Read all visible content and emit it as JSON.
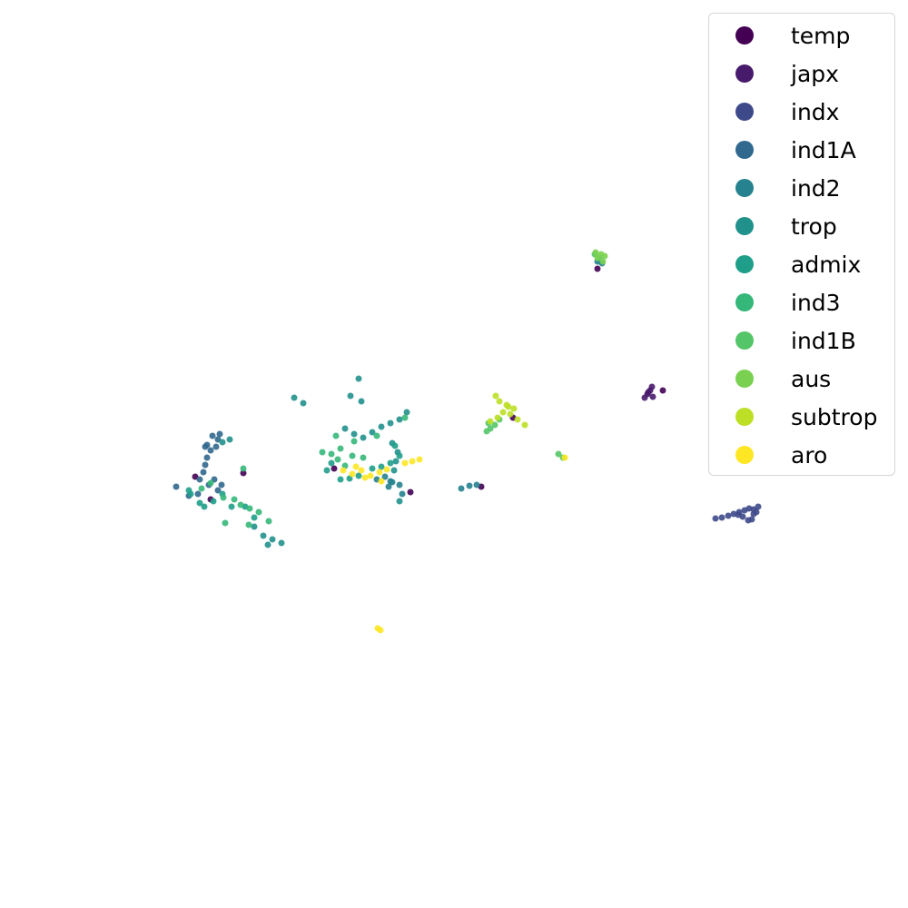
{
  "chart_data": {
    "type": "scatter",
    "title": "",
    "xlabel": "",
    "ylabel": "",
    "axes": "off",
    "grid": false,
    "legend_position": "top-right",
    "xlim": [
      0,
      100
    ],
    "ylim": [
      0,
      100
    ],
    "series": [
      {
        "name": "temp",
        "color": "#440154",
        "points": [
          [
            21.5,
            47.5
          ],
          [
            26.8,
            47.9
          ],
          [
            36.8,
            48.4
          ],
          [
            45.2,
            45.8
          ],
          [
            56.5,
            54.0
          ],
          [
            73.0,
            57.0
          ],
          [
            53.0,
            46.4
          ],
          [
            65.8,
            70.4
          ],
          [
            23.2,
            45.0
          ]
        ]
      },
      {
        "name": "japx",
        "color": "#481a6c",
        "points": [
          [
            71.0,
            56.2
          ],
          [
            71.3,
            56.6
          ],
          [
            71.6,
            57.0
          ],
          [
            71.8,
            57.4
          ],
          [
            71.4,
            56.8
          ],
          [
            71.9,
            56.3
          ]
        ]
      },
      {
        "name": "indx",
        "color": "#3e4989",
        "points": [
          [
            78.8,
            42.9
          ],
          [
            79.5,
            43.0
          ],
          [
            80.2,
            43.2
          ],
          [
            80.8,
            43.4
          ],
          [
            81.4,
            43.6
          ],
          [
            82.0,
            43.8
          ],
          [
            82.5,
            44.0
          ],
          [
            83.0,
            43.9
          ],
          [
            83.5,
            44.2
          ],
          [
            83.0,
            43.4
          ],
          [
            82.4,
            42.7
          ],
          [
            81.8,
            43.1
          ],
          [
            81.3,
            43.3
          ],
          [
            82.8,
            42.8
          ],
          [
            83.3,
            43.6
          ]
        ]
      },
      {
        "name": "ind1A",
        "color": "#31688e",
        "points": [
          [
            23.4,
            52.0
          ],
          [
            24.0,
            51.6
          ],
          [
            23.8,
            50.8
          ],
          [
            23.2,
            50.4
          ],
          [
            22.8,
            49.6
          ],
          [
            22.6,
            48.8
          ],
          [
            22.4,
            48.0
          ],
          [
            22.0,
            47.2
          ],
          [
            23.0,
            46.6
          ],
          [
            24.0,
            46.0
          ],
          [
            24.4,
            46.6
          ],
          [
            23.6,
            47.2
          ],
          [
            19.4,
            46.4
          ],
          [
            20.8,
            45.4
          ],
          [
            21.8,
            45.6
          ],
          [
            22.6,
            50.8
          ],
          [
            24.2,
            52.2
          ],
          [
            22.8,
            51.0
          ]
        ]
      },
      {
        "name": "ind2",
        "color": "#26828e",
        "points": [
          [
            42.4,
            47.5
          ],
          [
            43.2,
            46.9
          ],
          [
            44.0,
            46.6
          ],
          [
            44.3,
            45.6
          ],
          [
            50.8,
            46.2
          ],
          [
            51.7,
            46.5
          ],
          [
            52.5,
            46.6
          ],
          [
            43.0,
            47.0
          ],
          [
            41.5,
            47.2
          ],
          [
            42.8,
            46.4
          ],
          [
            65.8,
            71.2
          ],
          [
            66.3,
            71.0
          ]
        ]
      },
      {
        "name": "trop",
        "color": "#21918c",
        "points": [
          [
            38.0,
            52.8
          ],
          [
            39.0,
            52.2
          ],
          [
            40.0,
            51.8
          ],
          [
            41.0,
            52.4
          ],
          [
            42.0,
            53.0
          ],
          [
            43.0,
            53.4
          ],
          [
            44.0,
            53.8
          ],
          [
            44.8,
            54.6
          ],
          [
            43.2,
            51.2
          ],
          [
            43.8,
            50.2
          ],
          [
            43.6,
            49.2
          ],
          [
            43.4,
            48.2
          ],
          [
            44.0,
            44.8
          ],
          [
            32.4,
            56.2
          ],
          [
            33.4,
            55.6
          ],
          [
            38.6,
            56.4
          ],
          [
            39.8,
            55.8
          ],
          [
            28.0,
            42.0
          ],
          [
            29.0,
            41.0
          ],
          [
            30.0,
            40.6
          ],
          [
            31.0,
            40.2
          ],
          [
            29.5,
            40.0
          ],
          [
            39.5,
            58.3
          ],
          [
            24.5,
            51.3
          ],
          [
            25.3,
            51.6
          ]
        ]
      },
      {
        "name": "admix",
        "color": "#1f9e89",
        "points": [
          [
            36.5,
            49.0
          ],
          [
            37.5,
            47.2
          ],
          [
            38.5,
            47.3
          ],
          [
            39.5,
            47.6
          ],
          [
            41.0,
            48.4
          ],
          [
            42.0,
            48.6
          ],
          [
            43.0,
            49.0
          ],
          [
            44.0,
            49.8
          ],
          [
            43.5,
            50.9
          ],
          [
            21.0,
            45.6
          ],
          [
            22.0,
            44.6
          ],
          [
            22.5,
            44.2
          ],
          [
            23.5,
            44.8
          ],
          [
            24.5,
            45.6
          ],
          [
            25.5,
            44.2
          ],
          [
            27.0,
            44.2
          ],
          [
            28.0,
            43.0
          ],
          [
            20.8,
            46.0
          ],
          [
            36.0,
            48.2
          ]
        ]
      },
      {
        "name": "ind3",
        "color": "#35b779",
        "points": [
          [
            35.5,
            50.2
          ],
          [
            36.5,
            50.0
          ],
          [
            37.5,
            50.6
          ],
          [
            38.0,
            48.7
          ],
          [
            38.8,
            49.8
          ],
          [
            39.0,
            51.4
          ],
          [
            40.0,
            49.6
          ],
          [
            41.5,
            52.0
          ],
          [
            37.0,
            52.0
          ],
          [
            22.2,
            46.2
          ],
          [
            23.2,
            46.8
          ],
          [
            24.6,
            45.2
          ],
          [
            25.8,
            45.0
          ],
          [
            26.5,
            44.4
          ],
          [
            27.5,
            44.0
          ],
          [
            28.5,
            43.6
          ],
          [
            29.6,
            42.6
          ],
          [
            27.4,
            42.2
          ],
          [
            24.8,
            42.4
          ],
          [
            26.8,
            48.4
          ],
          [
            37.2,
            49.4
          ],
          [
            44.6,
            54.0
          ]
        ]
      },
      {
        "name": "ind1B",
        "color": "#54c568",
        "points": [
          [
            53.6,
            52.5
          ],
          [
            54.0,
            52.8
          ],
          [
            54.5,
            53.2
          ],
          [
            55.0,
            53.8
          ],
          [
            53.8,
            53.4
          ],
          [
            61.5,
            50.0
          ],
          [
            62.0,
            49.6
          ],
          [
            65.5,
            72.0
          ],
          [
            66.0,
            71.6
          ]
        ]
      },
      {
        "name": "aus",
        "color": "#7ad151",
        "points": [
          [
            65.6,
            72.2
          ],
          [
            66.2,
            72.0
          ],
          [
            66.6,
            71.8
          ],
          [
            65.8,
            71.6
          ],
          [
            66.4,
            71.2
          ]
        ]
      },
      {
        "name": "subtrop",
        "color": "#bddf26",
        "points": [
          [
            54.0,
            53.6
          ],
          [
            54.8,
            54.0
          ],
          [
            55.4,
            54.6
          ],
          [
            56.0,
            55.2
          ],
          [
            55.0,
            55.8
          ],
          [
            54.6,
            56.4
          ],
          [
            56.2,
            54.4
          ],
          [
            57.0,
            53.8
          ],
          [
            57.8,
            53.2
          ],
          [
            55.8,
            55.4
          ],
          [
            56.6,
            55.0
          ]
        ]
      },
      {
        "name": "aro",
        "color": "#fde725",
        "points": [
          [
            37.8,
            48.2
          ],
          [
            38.8,
            47.8
          ],
          [
            39.8,
            48.2
          ],
          [
            40.8,
            47.6
          ],
          [
            41.8,
            48.0
          ],
          [
            42.6,
            48.3
          ],
          [
            44.6,
            49.0
          ],
          [
            45.4,
            49.2
          ],
          [
            46.2,
            49.4
          ],
          [
            42.0,
            47.0
          ],
          [
            40.2,
            47.4
          ],
          [
            41.6,
            30.8
          ],
          [
            41.9,
            30.6
          ],
          [
            62.2,
            49.6
          ],
          [
            39.2,
            48.6
          ]
        ]
      }
    ]
  }
}
